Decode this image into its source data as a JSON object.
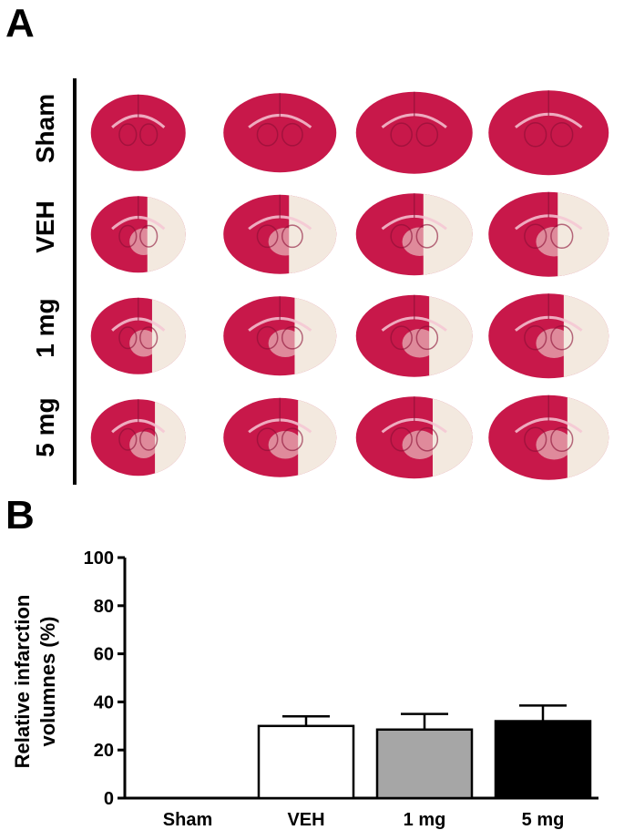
{
  "panel_a": {
    "letter": "A",
    "groups": [
      "Sham",
      "VEH",
      "1 mg",
      "5 mg"
    ],
    "columns": 4
  },
  "panel_b": {
    "letter": "B"
  },
  "colors": {
    "tissue_red": "#c8184a",
    "infarct_pale": "#f3e9df",
    "sham_bar": "#ffffff",
    "veh_bar": "#ffffff",
    "mg1_bar": "#a6a6a6",
    "mg5_bar": "#000000"
  },
  "chart_data": {
    "type": "bar",
    "categories": [
      "Sham",
      "VEH",
      "1 mg",
      "5 mg"
    ],
    "values": [
      0,
      30,
      28.5,
      32
    ],
    "errors": [
      0,
      4,
      6.5,
      6.5
    ],
    "bar_colors": [
      "#ffffff",
      "#ffffff",
      "#a6a6a6",
      "#000000"
    ],
    "ylabel": "Relative infarction volumnes (%)",
    "ylabel_lines": [
      "Relative infarction",
      "volumnes (%)"
    ],
    "xlabel": "",
    "ylim": [
      0,
      100
    ],
    "yticks": [
      0,
      20,
      40,
      60,
      80,
      100
    ],
    "grid": false
  }
}
